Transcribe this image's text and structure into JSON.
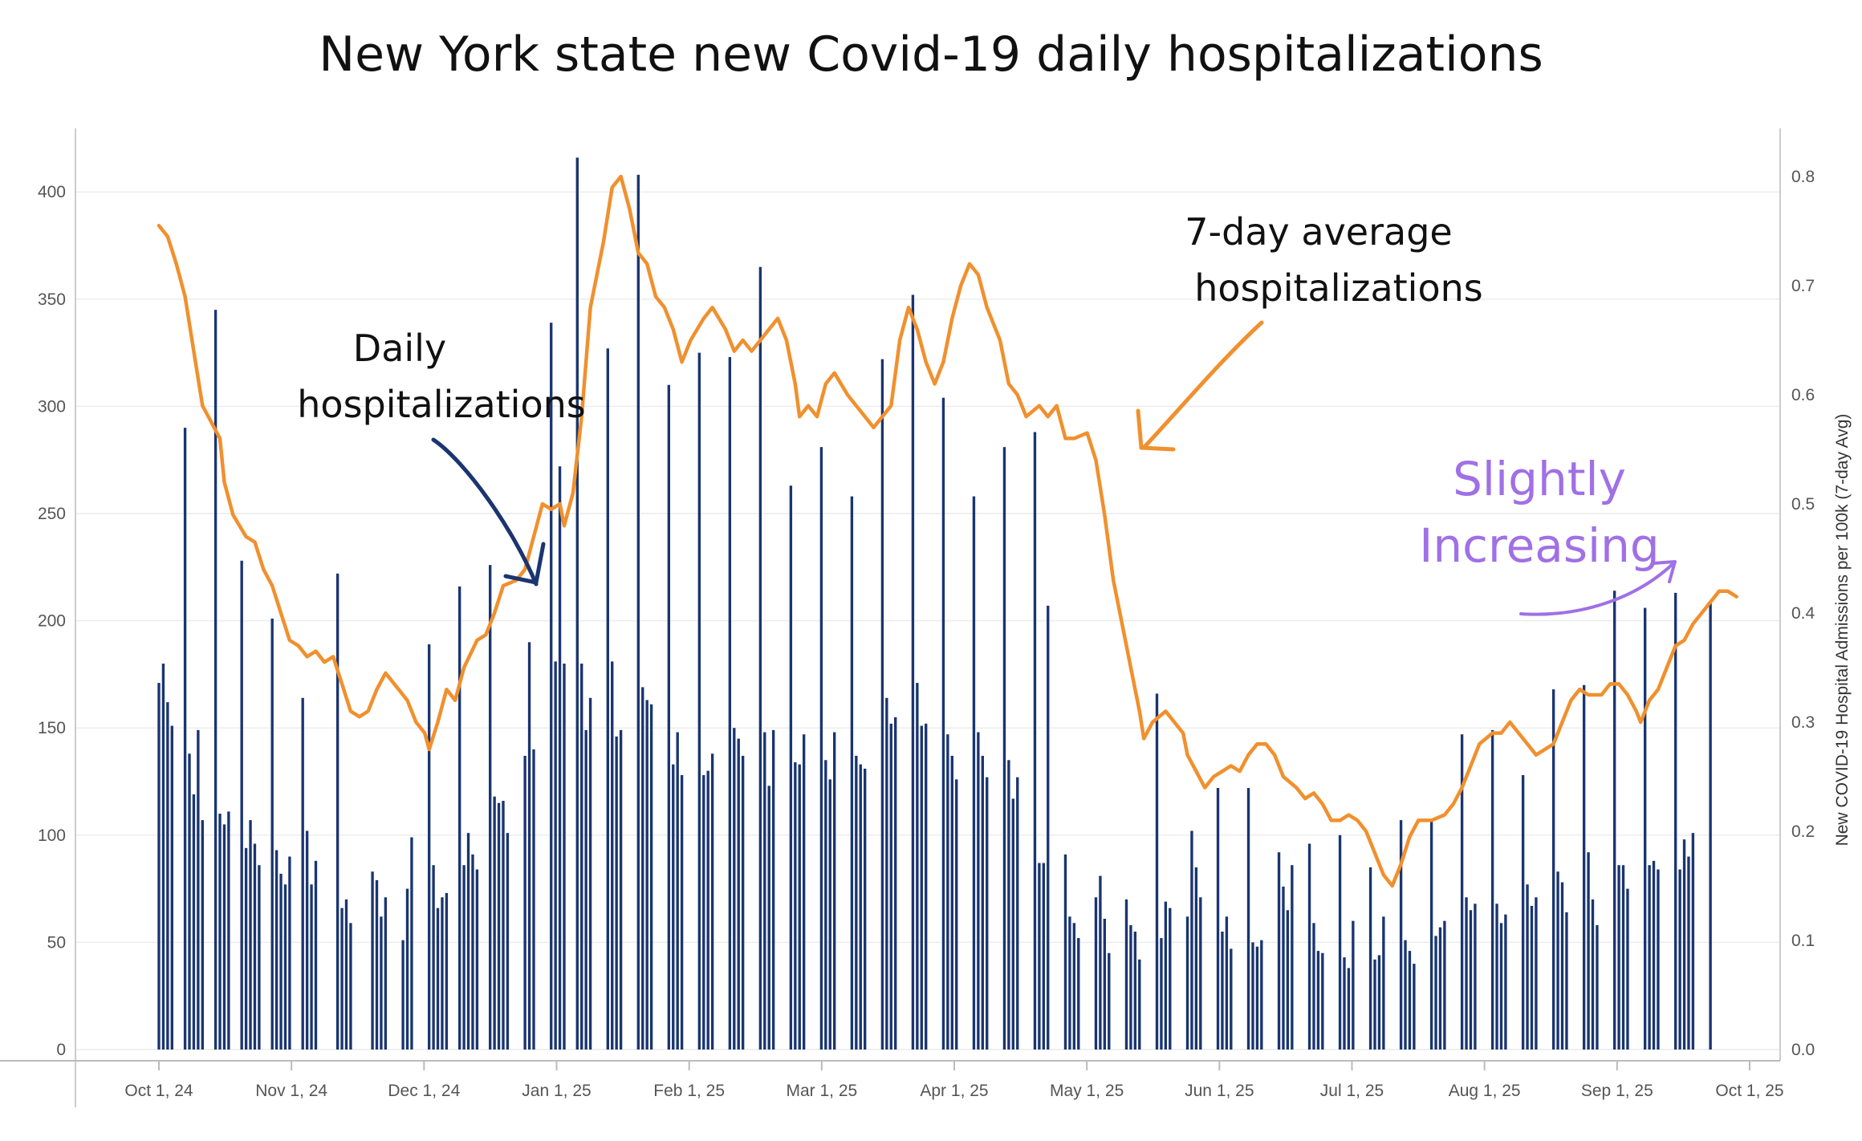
{
  "chart_data": {
    "type": "bar+line",
    "title": "New York state new Covid-19 daily hospitalizations",
    "xlabel": "",
    "y_left": {
      "label": "",
      "ylim": [
        0,
        430
      ],
      "ticks": [
        "0",
        "50",
        "100",
        "150",
        "200",
        "250",
        "300",
        "350",
        "400"
      ]
    },
    "y_right": {
      "label": "New COVID-19 Hospital Admissions per 100k (7-day Avg)",
      "ylim": [
        0,
        0.84
      ],
      "ticks": [
        "0.0",
        "0.1",
        "0.2",
        "0.3",
        "0.4",
        "0.5",
        "0.6",
        "0.7",
        "0.8"
      ]
    },
    "x_ticks": [
      "Oct 1, 24",
      "Nov 1, 24",
      "Dec 1, 24",
      "Jan 1, 25",
      "Feb 1, 25",
      "Mar 1, 25",
      "Apr 1, 25",
      "May 1, 25",
      "Jun 1, 25",
      "Jul 1, 25",
      "Aug 1, 25",
      "Sep 1, 25",
      "Oct 1, 25"
    ],
    "x_range_days": [
      0,
      365
    ],
    "grid": true,
    "colors": {
      "bars": "#1a3570",
      "line": "#f0902e",
      "annotation_daily": "#1a3570",
      "annotation_avg": "#f0902e",
      "annotation_increasing": "#a070e6"
    },
    "series": [
      {
        "kind": "bar",
        "axis": "left",
        "day_start": 0,
        "values": [
          171,
          180,
          162,
          151,
          0,
          0,
          290,
          138,
          119,
          149,
          107,
          0,
          0,
          345,
          110,
          105,
          111,
          0,
          0,
          228,
          94,
          107,
          96,
          86,
          0,
          0,
          201,
          93,
          82,
          77,
          90,
          0,
          0,
          164,
          102,
          77,
          88,
          0,
          0,
          0,
          0,
          222,
          66,
          70,
          59,
          0,
          0,
          0,
          0,
          83,
          79,
          62,
          71,
          0,
          0,
          0,
          51,
          75,
          99,
          0,
          0,
          0,
          189,
          86,
          66,
          71,
          73,
          0,
          0,
          216,
          86,
          101,
          91,
          84,
          0,
          0,
          226,
          118,
          115,
          116,
          101,
          0,
          0,
          0,
          137,
          190,
          140,
          0,
          0,
          0,
          339,
          181,
          272,
          180,
          0,
          0,
          416,
          180,
          149,
          164,
          0,
          0,
          0,
          327,
          181,
          146,
          149,
          0,
          0,
          0,
          408,
          169,
          163,
          161,
          0,
          0,
          0,
          310,
          133,
          148,
          128,
          0,
          0,
          0,
          325,
          128,
          130,
          138,
          0,
          0,
          0,
          323,
          150,
          145,
          137,
          0,
          0,
          0,
          365,
          148,
          123,
          149,
          0,
          0,
          0,
          263,
          134,
          133,
          147,
          0,
          0,
          0,
          281,
          135,
          126,
          148,
          0,
          0,
          0,
          258,
          137,
          133,
          131,
          0,
          0,
          0,
          322,
          164,
          152,
          155,
          0,
          0,
          0,
          352,
          171,
          151,
          152,
          0,
          0,
          0,
          304,
          147,
          137,
          126,
          0,
          0,
          0,
          258,
          148,
          137,
          127,
          0,
          0,
          0,
          281,
          135,
          117,
          127,
          0,
          0,
          0,
          288,
          87,
          87,
          207,
          0,
          0,
          0,
          91,
          62,
          59,
          52,
          0,
          0,
          0,
          71,
          81,
          61,
          45,
          0,
          0,
          0,
          70,
          58,
          55,
          42,
          0,
          0,
          0,
          166,
          52,
          69,
          66,
          0,
          0,
          0,
          62,
          102,
          85,
          71,
          0,
          0,
          0,
          122,
          55,
          62,
          47,
          0,
          0,
          0,
          122,
          50,
          48,
          51,
          0,
          0,
          0,
          92,
          76,
          65,
          86,
          0,
          0,
          0,
          96,
          59,
          46,
          45,
          0,
          0,
          0,
          100,
          43,
          38,
          60,
          0,
          0,
          0,
          85,
          42,
          44,
          62,
          0,
          0,
          0,
          107,
          51,
          46,
          40,
          0,
          0,
          0,
          107,
          53,
          57,
          60,
          0,
          0,
          0,
          147,
          71,
          65,
          68,
          0,
          0,
          0,
          149,
          68,
          59,
          63,
          0,
          0,
          0,
          128,
          77,
          67,
          71,
          0,
          0,
          0,
          168,
          83,
          78,
          64,
          0,
          0,
          0,
          170,
          92,
          70,
          58,
          0,
          0,
          0,
          214,
          86,
          86,
          75,
          0,
          0,
          0,
          206,
          86,
          88,
          84,
          0,
          0,
          0,
          213,
          84,
          98,
          90,
          101,
          0,
          0,
          0,
          209
        ]
      },
      {
        "kind": "line",
        "name": "7-day average",
        "axis": "right",
        "points": [
          [
            0,
            0.755
          ],
          [
            2,
            0.745
          ],
          [
            4,
            0.72
          ],
          [
            6,
            0.69
          ],
          [
            8,
            0.64
          ],
          [
            10,
            0.59
          ],
          [
            12,
            0.575
          ],
          [
            14,
            0.56
          ],
          [
            15,
            0.52
          ],
          [
            17,
            0.49
          ],
          [
            20,
            0.47
          ],
          [
            22,
            0.465
          ],
          [
            24,
            0.44
          ],
          [
            26,
            0.425
          ],
          [
            28,
            0.4
          ],
          [
            30,
            0.375
          ],
          [
            32,
            0.37
          ],
          [
            34,
            0.36
          ],
          [
            36,
            0.365
          ],
          [
            38,
            0.355
          ],
          [
            40,
            0.36
          ],
          [
            42,
            0.335
          ],
          [
            44,
            0.31
          ],
          [
            46,
            0.305
          ],
          [
            48,
            0.31
          ],
          [
            50,
            0.33
          ],
          [
            52,
            0.345
          ],
          [
            55,
            0.33
          ],
          [
            57,
            0.32
          ],
          [
            59,
            0.3
          ],
          [
            61,
            0.29
          ],
          [
            62,
            0.275
          ],
          [
            64,
            0.3
          ],
          [
            66,
            0.33
          ],
          [
            68,
            0.32
          ],
          [
            70,
            0.35
          ],
          [
            73,
            0.375
          ],
          [
            75,
            0.38
          ],
          [
            77,
            0.4
          ],
          [
            79,
            0.425
          ],
          [
            82,
            0.43
          ],
          [
            84,
            0.44
          ],
          [
            86,
            0.47
          ],
          [
            88,
            0.5
          ],
          [
            90,
            0.495
          ],
          [
            92,
            0.5
          ],
          [
            93,
            0.48
          ],
          [
            95,
            0.51
          ],
          [
            97,
            0.58
          ],
          [
            99,
            0.68
          ],
          [
            102,
            0.74
          ],
          [
            104,
            0.79
          ],
          [
            106,
            0.8
          ],
          [
            108,
            0.77
          ],
          [
            110,
            0.73
          ],
          [
            112,
            0.72
          ],
          [
            114,
            0.69
          ],
          [
            116,
            0.68
          ],
          [
            118,
            0.66
          ],
          [
            120,
            0.63
          ],
          [
            122,
            0.65
          ],
          [
            125,
            0.67
          ],
          [
            127,
            0.68
          ],
          [
            130,
            0.66
          ],
          [
            132,
            0.64
          ],
          [
            134,
            0.65
          ],
          [
            136,
            0.64
          ],
          [
            138,
            0.65
          ],
          [
            140,
            0.66
          ],
          [
            142,
            0.67
          ],
          [
            144,
            0.65
          ],
          [
            146,
            0.61
          ],
          [
            147,
            0.58
          ],
          [
            149,
            0.59
          ],
          [
            151,
            0.58
          ],
          [
            153,
            0.61
          ],
          [
            155,
            0.62
          ],
          [
            158,
            0.6
          ],
          [
            160,
            0.59
          ],
          [
            162,
            0.58
          ],
          [
            164,
            0.57
          ],
          [
            166,
            0.58
          ],
          [
            168,
            0.59
          ],
          [
            170,
            0.65
          ],
          [
            172,
            0.68
          ],
          [
            174,
            0.66
          ],
          [
            176,
            0.63
          ],
          [
            178,
            0.61
          ],
          [
            180,
            0.63
          ],
          [
            182,
            0.67
          ],
          [
            184,
            0.7
          ],
          [
            186,
            0.72
          ],
          [
            188,
            0.71
          ],
          [
            190,
            0.68
          ],
          [
            193,
            0.65
          ],
          [
            195,
            0.61
          ],
          [
            197,
            0.6
          ],
          [
            199,
            0.58
          ],
          [
            202,
            0.59
          ],
          [
            204,
            0.58
          ],
          [
            206,
            0.59
          ],
          [
            208,
            0.56
          ],
          [
            210,
            0.56
          ],
          [
            213,
            0.565
          ],
          [
            215,
            0.54
          ],
          [
            217,
            0.49
          ],
          [
            219,
            0.43
          ],
          [
            221,
            0.39
          ],
          [
            223,
            0.35
          ],
          [
            225,
            0.31
          ],
          [
            226,
            0.285
          ],
          [
            228,
            0.3
          ],
          [
            231,
            0.31
          ],
          [
            233,
            0.3
          ],
          [
            235,
            0.29
          ],
          [
            236,
            0.27
          ],
          [
            238,
            0.255
          ],
          [
            240,
            0.24
          ],
          [
            242,
            0.25
          ],
          [
            244,
            0.255
          ],
          [
            246,
            0.26
          ],
          [
            248,
            0.255
          ],
          [
            250,
            0.27
          ],
          [
            252,
            0.28
          ],
          [
            254,
            0.28
          ],
          [
            256,
            0.27
          ],
          [
            258,
            0.25
          ],
          [
            261,
            0.24
          ],
          [
            263,
            0.23
          ],
          [
            265,
            0.235
          ],
          [
            267,
            0.225
          ],
          [
            269,
            0.21
          ],
          [
            271,
            0.21
          ],
          [
            273,
            0.215
          ],
          [
            275,
            0.21
          ],
          [
            277,
            0.2
          ],
          [
            279,
            0.18
          ],
          [
            281,
            0.16
          ],
          [
            283,
            0.15
          ],
          [
            285,
            0.17
          ],
          [
            287,
            0.195
          ],
          [
            289,
            0.21
          ],
          [
            292,
            0.21
          ],
          [
            295,
            0.215
          ],
          [
            297,
            0.225
          ],
          [
            299,
            0.24
          ],
          [
            301,
            0.26
          ],
          [
            303,
            0.28
          ],
          [
            306,
            0.29
          ],
          [
            308,
            0.29
          ],
          [
            310,
            0.3
          ],
          [
            312,
            0.29
          ],
          [
            314,
            0.28
          ],
          [
            316,
            0.27
          ],
          [
            318,
            0.275
          ],
          [
            320,
            0.28
          ],
          [
            322,
            0.3
          ],
          [
            324,
            0.32
          ],
          [
            326,
            0.33
          ],
          [
            328,
            0.325
          ],
          [
            331,
            0.325
          ],
          [
            333,
            0.335
          ],
          [
            335,
            0.335
          ],
          [
            337,
            0.325
          ],
          [
            339,
            0.31
          ],
          [
            340,
            0.3
          ],
          [
            342,
            0.32
          ],
          [
            344,
            0.33
          ],
          [
            346,
            0.35
          ],
          [
            348,
            0.37
          ],
          [
            350,
            0.375
          ],
          [
            352,
            0.39
          ],
          [
            354,
            0.4
          ],
          [
            356,
            0.41
          ],
          [
            358,
            0.42
          ],
          [
            360,
            0.42
          ],
          [
            362,
            0.415
          ]
        ]
      }
    ],
    "annotations": [
      {
        "text": "Daily",
        "color": "#111111"
      },
      {
        "text": "hospitalizations",
        "color": "#111111"
      },
      {
        "text": "7-day average",
        "color": "#111111"
      },
      {
        "text": "hospitalizations",
        "color": "#111111"
      },
      {
        "text": "Slightly",
        "color": "#a070e6"
      },
      {
        "text": "Increasing",
        "color": "#a070e6"
      }
    ]
  }
}
